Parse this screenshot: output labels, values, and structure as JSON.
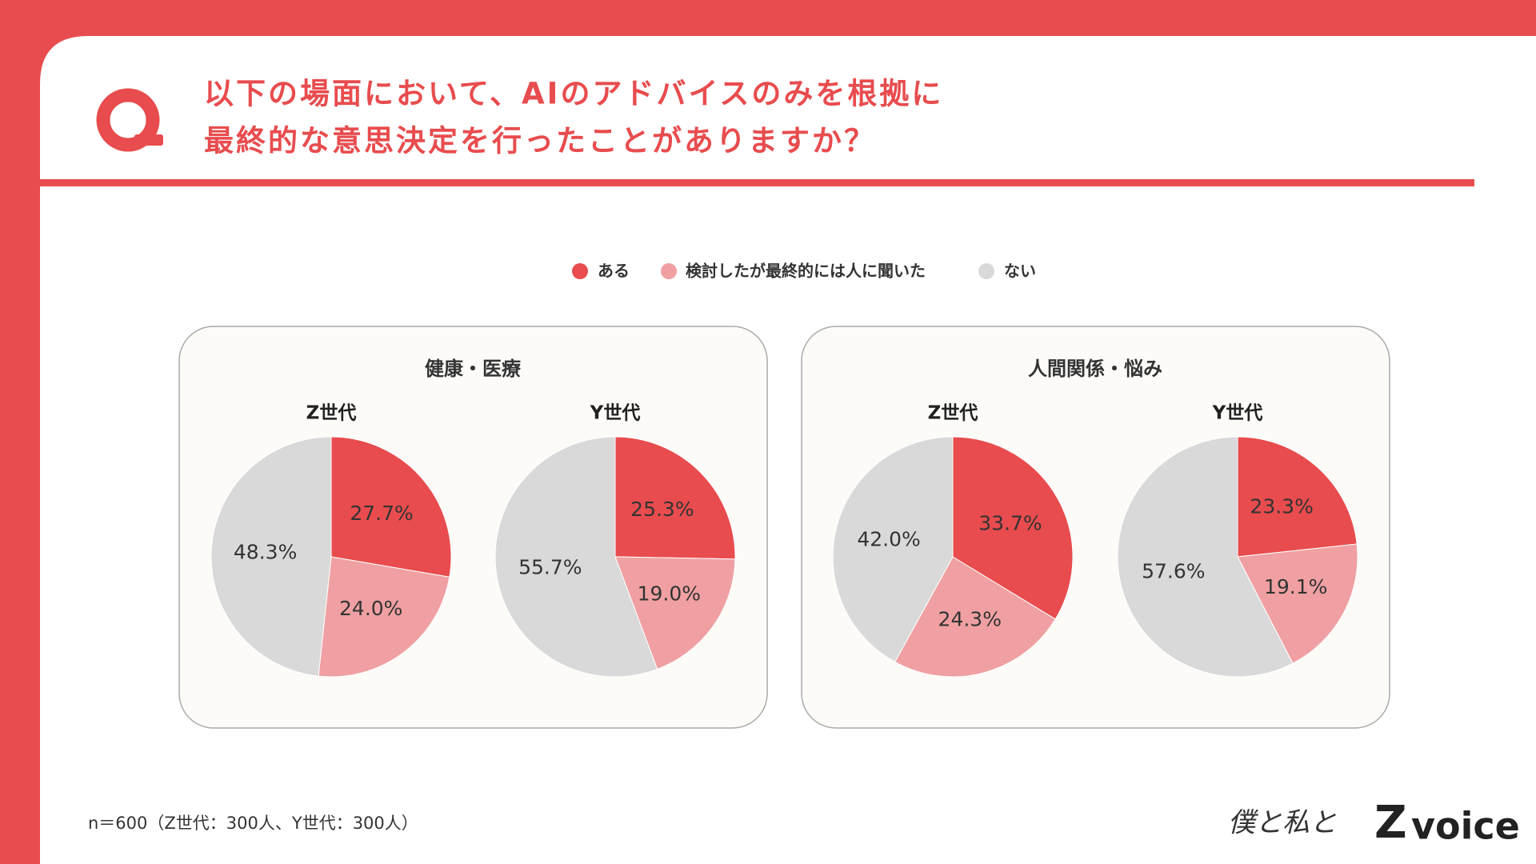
{
  "header": {
    "title": [
      "以下の場面において、AIのアドバイスのみを根拠に",
      "最終的な意思決定を行ったことがありますか？"
    ]
  },
  "panels": [
    {
      "title": "健康・医療"
    },
    {
      "title": "人間関係・悩み"
    }
  ],
  "chart_data": [
    {
      "type": "pie",
      "title": "Z世代",
      "categories": [
        "ある",
        "検討したが最終的には人に聞いた",
        "ない"
      ],
      "colors": [
        "#e84c4e",
        "#f0a0a2",
        "#d9d9d9"
      ],
      "values": [
        27.7,
        24,
        48.3
      ],
      "value_labels": [
        "27.7%",
        "24.0%",
        "48.3%"
      ]
    },
    {
      "type": "pie",
      "title": "Y世代",
      "categories": [
        "ある",
        "検討したが最終的には人に聞いた",
        "ない"
      ],
      "colors": [
        "#e84c4e",
        "#f0a0a2",
        "#d9d9d9"
      ],
      "values": [
        25.3,
        19,
        55.7
      ],
      "value_labels": [
        "25.3%",
        "19.0%",
        "55.7%"
      ]
    },
    {
      "type": "pie",
      "title": "Z世代",
      "categories": [
        "ある",
        "検討したが最終的には人に聞いた",
        "ない"
      ],
      "colors": [
        "#e84c4e",
        "#f0a0a2",
        "#d9d9d9"
      ],
      "values": [
        33.7,
        24.3,
        42
      ],
      "value_labels": [
        "33.7%",
        "24.3%",
        "42.0%"
      ]
    },
    {
      "type": "pie",
      "title": "Y世代",
      "categories": [
        "ある",
        "検討したが最終的には人に聞いた",
        "ない"
      ],
      "colors": [
        "#e84c4e",
        "#f0a0a2",
        "#d9d9d9"
      ],
      "values": [
        23.3,
        19.1,
        57.6
      ],
      "value_labels": [
        "23.3%",
        "19.1%",
        "57.6%"
      ]
    }
  ],
  "footnote": "n＝600（Z世代：300人、Y世代：300人）",
  "logo": {
    "script": "僕と私と",
    "mark": "Z",
    "brand": "voice"
  }
}
